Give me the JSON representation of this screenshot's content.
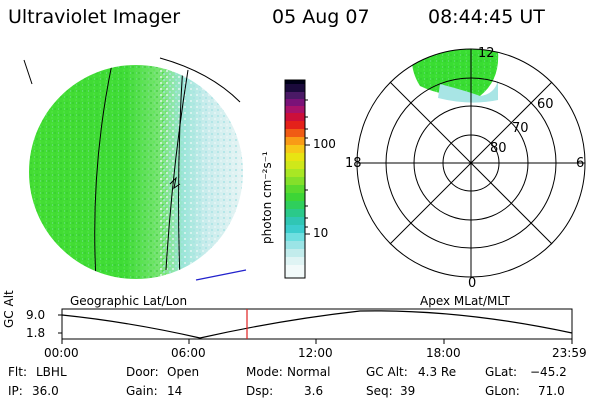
{
  "header": {
    "title": "Ultraviolet Imager",
    "date": "05 Aug 07",
    "time": "08:44:45 UT"
  },
  "colorbar": {
    "unit_label": "photon cm⁻²s⁻¹",
    "tick_100": "100",
    "tick_10": "10"
  },
  "polar": {
    "mlt_top": "12",
    "mlt_left": "18",
    "mlt_right": "6",
    "mlt_bottom": "0",
    "lat_60": "60",
    "lat_70": "70",
    "lat_80": "80"
  },
  "labels": {
    "geo": "Geographic Lat/Lon",
    "apex": "Apex MLat/MLT"
  },
  "altitude_plot": {
    "axis_label": "GC Alt",
    "y_hi": "9.0",
    "y_lo": "1.8",
    "x_ticks": [
      "00:00",
      "06:00",
      "12:00",
      "18:00",
      "23:59"
    ],
    "current_time": "08:44:45"
  },
  "info": {
    "flt_label": "Flt:",
    "flt_value": "LBHL",
    "ip_label": "IP:",
    "ip_value": "36.0",
    "door_label": "Door:",
    "door_value": "Open",
    "gain_label": "Gain:",
    "gain_value": "14",
    "mode_label": "Mode:",
    "mode_value": "Normal",
    "dsp_label": "Dsp:",
    "dsp_value": "3.6",
    "gcalt_label": "GC Alt:",
    "gcalt_value": "4.3 Re",
    "seq_label": "Seq:",
    "seq_value": "39",
    "glat_label": "GLat:",
    "glat_value": "−45.2",
    "glon_label": "GLon:",
    "glon_value": "71.0"
  },
  "colors": {
    "green": "#39dd32",
    "light_cyan": "#c2ecec",
    "cyan": "#6fdfe0",
    "red_marker": "#e02020",
    "blue_line": "#2222cc"
  }
}
